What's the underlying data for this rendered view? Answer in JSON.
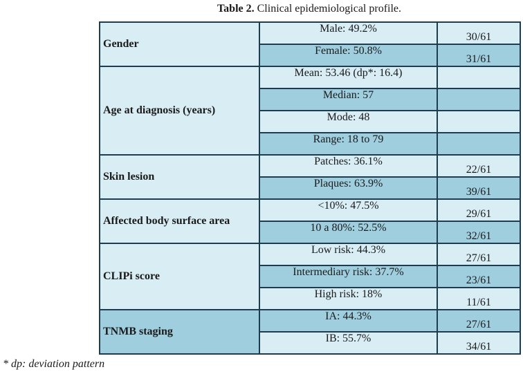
{
  "caption": {
    "label": "Table 2.",
    "text": "Clinical epidemiological profile."
  },
  "groups": [
    {
      "label": "Gender",
      "rows": [
        {
          "value": "Male: 49.2%",
          "count": "30/61"
        },
        {
          "value": "Female: 50.8%",
          "count": "31/61"
        }
      ]
    },
    {
      "label": "Age at diagnosis (years)",
      "rows": [
        {
          "value": "Mean: 53.46 (dp*: 16.4)",
          "count": ""
        },
        {
          "value": "Median: 57",
          "count": ""
        },
        {
          "value": "Mode: 48",
          "count": ""
        },
        {
          "value": "Range: 18 to 79",
          "count": ""
        }
      ]
    },
    {
      "label": "Skin lesion",
      "rows": [
        {
          "value": "Patches: 36.1%",
          "count": "22/61"
        },
        {
          "value": "Plaques: 63.9%",
          "count": "39/61"
        }
      ]
    },
    {
      "label": "Affected body surface area",
      "rows": [
        {
          "value": "<10%: 47.5%",
          "count": "29/61"
        },
        {
          "value": "10 a 80%: 52.5%",
          "count": "32/61"
        }
      ]
    },
    {
      "label": "CLIPi score",
      "rows": [
        {
          "value": "Low risk: 44.3%",
          "count": "27/61"
        },
        {
          "value": "Intermediary risk: 37.7%",
          "count": "23/61"
        },
        {
          "value": "High risk: 18%",
          "count": "11/61"
        }
      ]
    },
    {
      "label": "TNMB staging",
      "rows": [
        {
          "value": "IA: 44.3%",
          "count": "27/61"
        },
        {
          "value": "IB: 55.7%",
          "count": "34/61"
        }
      ]
    }
  ],
  "footnote": "* dp: deviation pattern"
}
